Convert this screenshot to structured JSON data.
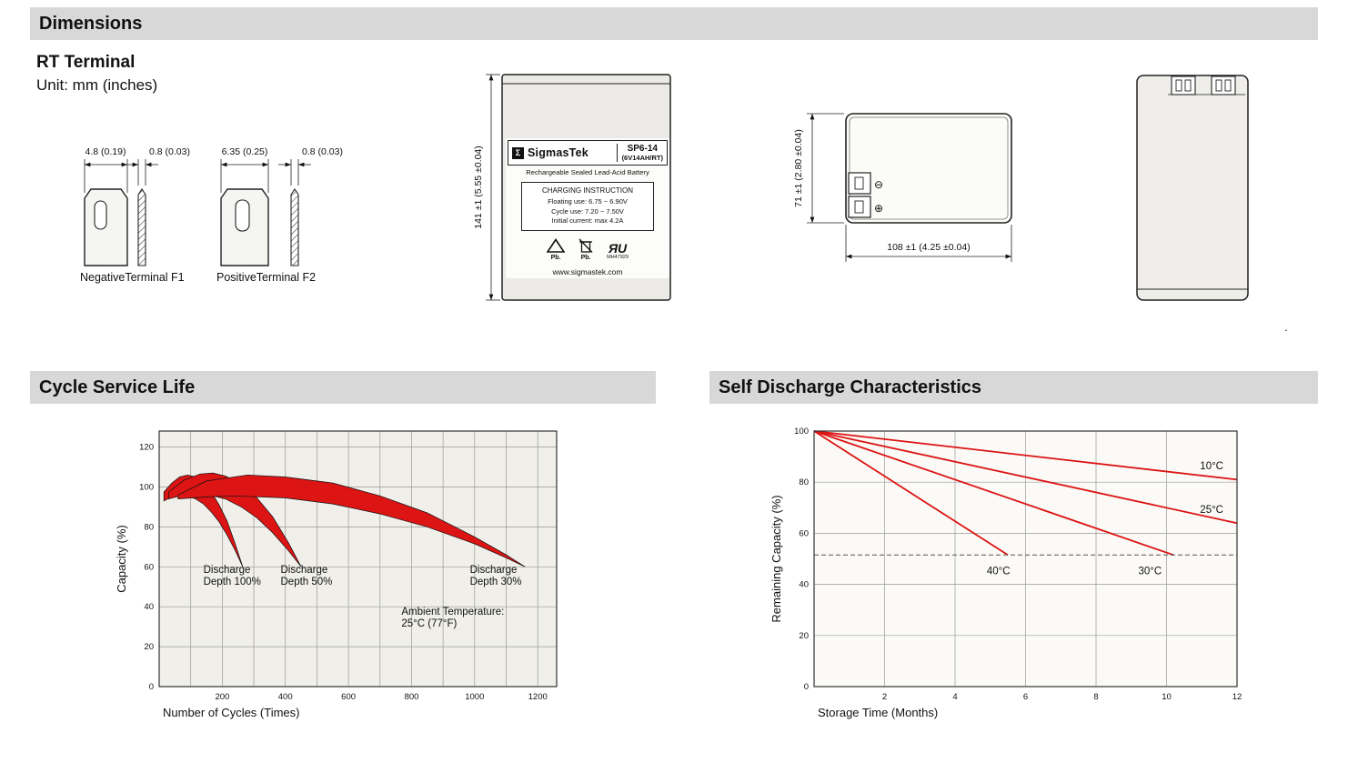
{
  "header": {
    "dimensions": "Dimensions"
  },
  "rt": {
    "title": "RT Terminal",
    "unit": "Unit: mm (inches)"
  },
  "page": {
    "stray_mark": "."
  },
  "terminals": {
    "negative": {
      "width_dim": "4.8 (0.19)",
      "thickness_dim": "0.8 (0.03)",
      "label": "NegativeTerminal F1"
    },
    "positive": {
      "width_dim": "6.35 (0.25)",
      "thickness_dim": "0.8 (0.03)",
      "label": "PositiveTerminal F2"
    }
  },
  "front_view": {
    "height_dim": "141 ±1 (5.55 ±0.04)",
    "logo_glyph": "Σ",
    "brand": "SigmasTek",
    "model": "SP6-14",
    "rating": "(6V14AH/RT)",
    "type_line": "Rechargeable Sealed Lead-Acid Battery",
    "charging": {
      "title": "CHARGING INSTRUCTION",
      "lines": [
        "Floating use: 6.75 ~ 6.90V",
        "Cycle use: 7.20 ~ 7.50V",
        "Initial current: max 4.2A"
      ]
    },
    "pb_recycle": "Pb.",
    "pb_bin": "Pb.",
    "ul_mark": "ЯU",
    "ul_code": "MH47929",
    "website": "www.sigmastek.com"
  },
  "top_view": {
    "height_dim": "71 ±1 (2.80 ±0.04)",
    "width_dim": "108 ±1 (4.25 ±0.04)",
    "neg_symbol": "⊖",
    "pos_symbol": "⊕"
  },
  "section_titles": {
    "cycle": "Cycle Service Life",
    "self_discharge": "Self Discharge Characteristics"
  },
  "chart_data": [
    {
      "type": "area",
      "title": "Cycle Service Life",
      "xlabel": "Number of Cycles (Times)",
      "ylabel": "Capacity (%)",
      "xlim": [
        0,
        1260
      ],
      "ylim": [
        0,
        128
      ],
      "xticks": [
        200,
        400,
        600,
        800,
        1000,
        1200
      ],
      "yticks": [
        0,
        20,
        40,
        60,
        80,
        100,
        120
      ],
      "grid_x": [
        100,
        200,
        300,
        400,
        500,
        600,
        700,
        800,
        900,
        1000,
        1100,
        1200
      ],
      "grid_y": [
        20,
        40,
        60,
        80,
        100,
        120
      ],
      "bg": "#f0efe9",
      "band_fill": "#dc1414",
      "bands": [
        {
          "name": "Discharge Depth 100%",
          "upper": [
            [
              15,
              97.5
            ],
            [
              40,
              102
            ],
            [
              65,
              105
            ],
            [
              90,
              106
            ],
            [
              115,
              105
            ],
            [
              140,
              102
            ],
            [
              165,
              97.5
            ],
            [
              190,
              91
            ],
            [
              215,
              83
            ],
            [
              240,
              72
            ],
            [
              265,
              60
            ]
          ],
          "lower": [
            [
              240,
              68.5
            ],
            [
              215,
              76
            ],
            [
              190,
              82.5
            ],
            [
              165,
              87.5
            ],
            [
              140,
              91.5
            ],
            [
              115,
              94
            ],
            [
              90,
              95.5
            ],
            [
              65,
              96
            ],
            [
              40,
              95
            ],
            [
              15,
              93
            ]
          ]
        },
        {
          "name": "Discharge Depth 50%",
          "upper": [
            [
              30,
              97.5
            ],
            [
              80,
              103.5
            ],
            [
              130,
              106.5
            ],
            [
              170,
              107
            ],
            [
              210,
              105.5
            ],
            [
              260,
              101.5
            ],
            [
              310,
              94.5
            ],
            [
              360,
              85
            ],
            [
              410,
              72
            ],
            [
              450,
              60
            ]
          ],
          "lower": [
            [
              410,
              68
            ],
            [
              360,
              77
            ],
            [
              310,
              84.5
            ],
            [
              260,
              90
            ],
            [
              210,
              94
            ],
            [
              160,
              96
            ],
            [
              120,
              96.5
            ],
            [
              80,
              96
            ],
            [
              30,
              94
            ]
          ]
        },
        {
          "name": "Discharge Depth 30%",
          "upper": [
            [
              60,
              96
            ],
            [
              150,
              103
            ],
            [
              280,
              106
            ],
            [
              400,
              105
            ],
            [
              550,
              102
            ],
            [
              700,
              95.5
            ],
            [
              850,
              87
            ],
            [
              1000,
              75
            ],
            [
              1100,
              66
            ],
            [
              1160,
              60
            ]
          ],
          "lower": [
            [
              1100,
              64.5
            ],
            [
              1000,
              71.5
            ],
            [
              850,
              80
            ],
            [
              700,
              86.5
            ],
            [
              550,
              91.5
            ],
            [
              400,
              94.5
            ],
            [
              240,
              95.5
            ],
            [
              150,
              95
            ],
            [
              60,
              94
            ]
          ]
        }
      ],
      "annotations": [
        {
          "lines": [
            "Discharge",
            "Depth 100%"
          ],
          "x": 140,
          "y": 57
        },
        {
          "lines": [
            "Discharge",
            "Depth 50%"
          ],
          "x": 385,
          "y": 57
        },
        {
          "lines": [
            "Discharge",
            "Depth 30%"
          ],
          "x": 985,
          "y": 57
        },
        {
          "lines": [
            "Ambient Temperature:",
            "25°C (77°F)"
          ],
          "x": 768,
          "y": 36
        }
      ]
    },
    {
      "type": "line",
      "title": "Self Discharge Characteristics",
      "xlabel": "Storage Time (Months)",
      "ylabel": "Remaining Capacity (%)",
      "xlim": [
        0,
        12
      ],
      "ylim": [
        0,
        100
      ],
      "xticks": [
        2,
        4,
        6,
        8,
        10,
        12
      ],
      "yticks": [
        0,
        20,
        40,
        60,
        80,
        100
      ],
      "grid_x": [
        2,
        4,
        6,
        8,
        10,
        12
      ],
      "grid_y": [
        20,
        40,
        60,
        80,
        100
      ],
      "bg": "#fbfaf6",
      "line_color": "#dc1414",
      "dashed_line_y": 51.5,
      "series": [
        {
          "name": "10°C",
          "points": [
            [
              0,
              100
            ],
            [
              12,
              81
            ]
          ],
          "label_x": 10.95,
          "label_y": 85
        },
        {
          "name": "25°C",
          "points": [
            [
              0,
              100
            ],
            [
              12,
              64
            ]
          ],
          "label_x": 10.95,
          "label_y": 68
        },
        {
          "name": "30°C",
          "points": [
            [
              0,
              100
            ],
            [
              10.2,
              51.5
            ]
          ],
          "label_x": 9.2,
          "label_y": 44
        },
        {
          "name": "40°C",
          "points": [
            [
              0,
              100
            ],
            [
              5.5,
              51.5
            ]
          ],
          "label_x": 4.9,
          "label_y": 44
        }
      ]
    }
  ]
}
